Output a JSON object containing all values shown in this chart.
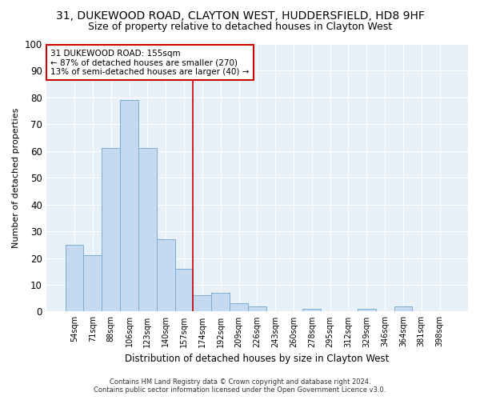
{
  "title1": "31, DUKEWOOD ROAD, CLAYTON WEST, HUDDERSFIELD, HD8 9HF",
  "title2": "Size of property relative to detached houses in Clayton West",
  "xlabel": "Distribution of detached houses by size in Clayton West",
  "ylabel": "Number of detached properties",
  "categories": [
    "54sqm",
    "71sqm",
    "88sqm",
    "106sqm",
    "123sqm",
    "140sqm",
    "157sqm",
    "174sqm",
    "192sqm",
    "209sqm",
    "226sqm",
    "243sqm",
    "260sqm",
    "278sqm",
    "295sqm",
    "312sqm",
    "329sqm",
    "346sqm",
    "364sqm",
    "381sqm",
    "398sqm"
  ],
  "values": [
    25,
    21,
    61,
    79,
    61,
    27,
    16,
    6,
    7,
    3,
    2,
    0,
    0,
    1,
    0,
    0,
    1,
    0,
    2,
    0,
    0
  ],
  "bar_color": "#c5d9f0",
  "bar_edge_color": "#7bafd4",
  "vline_x": 6.5,
  "vline_color": "#cc0000",
  "annotation_text": "31 DUKEWOOD ROAD: 155sqm\n← 87% of detached houses are smaller (270)\n13% of semi-detached houses are larger (40) →",
  "annotation_box_color": "#ffffff",
  "annotation_box_edge_color": "#cc0000",
  "ylim": [
    0,
    100
  ],
  "yticks": [
    0,
    10,
    20,
    30,
    40,
    50,
    60,
    70,
    80,
    90,
    100
  ],
  "footer1": "Contains HM Land Registry data © Crown copyright and database right 2024.",
  "footer2": "Contains public sector information licensed under the Open Government Licence v3.0.",
  "bg_color": "#ffffff",
  "plot_bg_color": "#e8f0f8",
  "grid_color": "#ffffff",
  "title1_fontsize": 10,
  "title2_fontsize": 9
}
